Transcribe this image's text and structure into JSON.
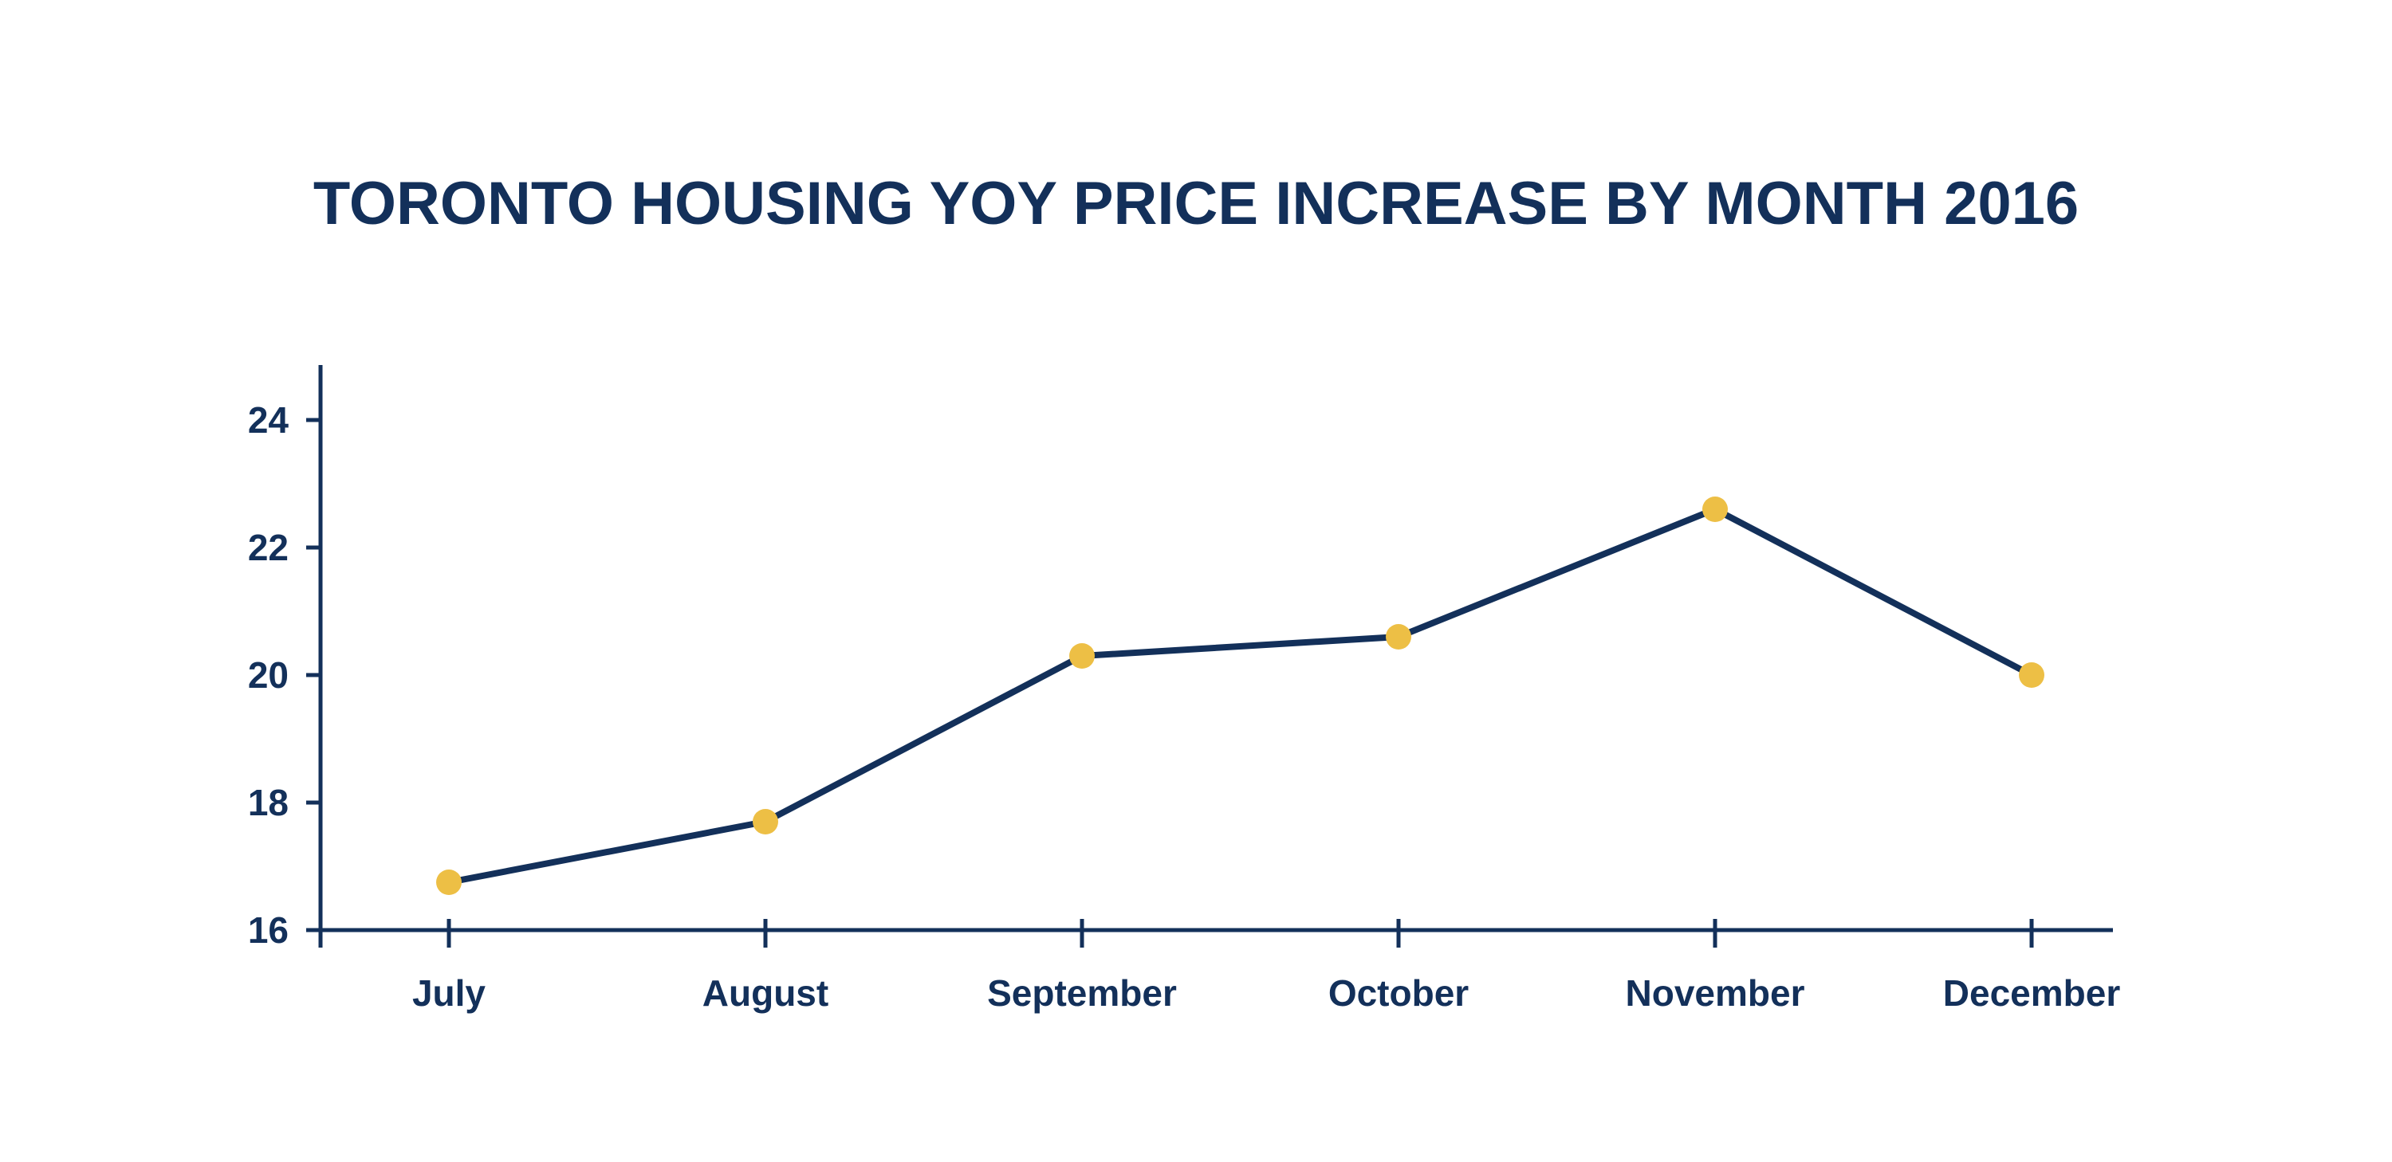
{
  "colors": {
    "text": "#13305A",
    "axis": "#13305A",
    "line": "#13305A",
    "marker": "#EDBF45",
    "background": "#FFFFFF"
  },
  "chart_data": {
    "type": "line",
    "title": "TORONTO HOUSING YOY PRICE INCREASE BY MONTH 2016",
    "xlabel": "",
    "ylabel": "",
    "categories": [
      "July",
      "August",
      "September",
      "October",
      "November",
      "December"
    ],
    "series": [
      {
        "values": [
          16.75,
          17.7,
          20.3,
          20.6,
          22.6,
          20.0
        ]
      }
    ],
    "ylim": [
      16,
      24.9
    ],
    "yticks": [
      16,
      18,
      20,
      22,
      24
    ],
    "ytick_labels": [
      "16",
      "18",
      "20",
      "22",
      "24"
    ],
    "grid": false,
    "legend": "none",
    "markers": true
  }
}
